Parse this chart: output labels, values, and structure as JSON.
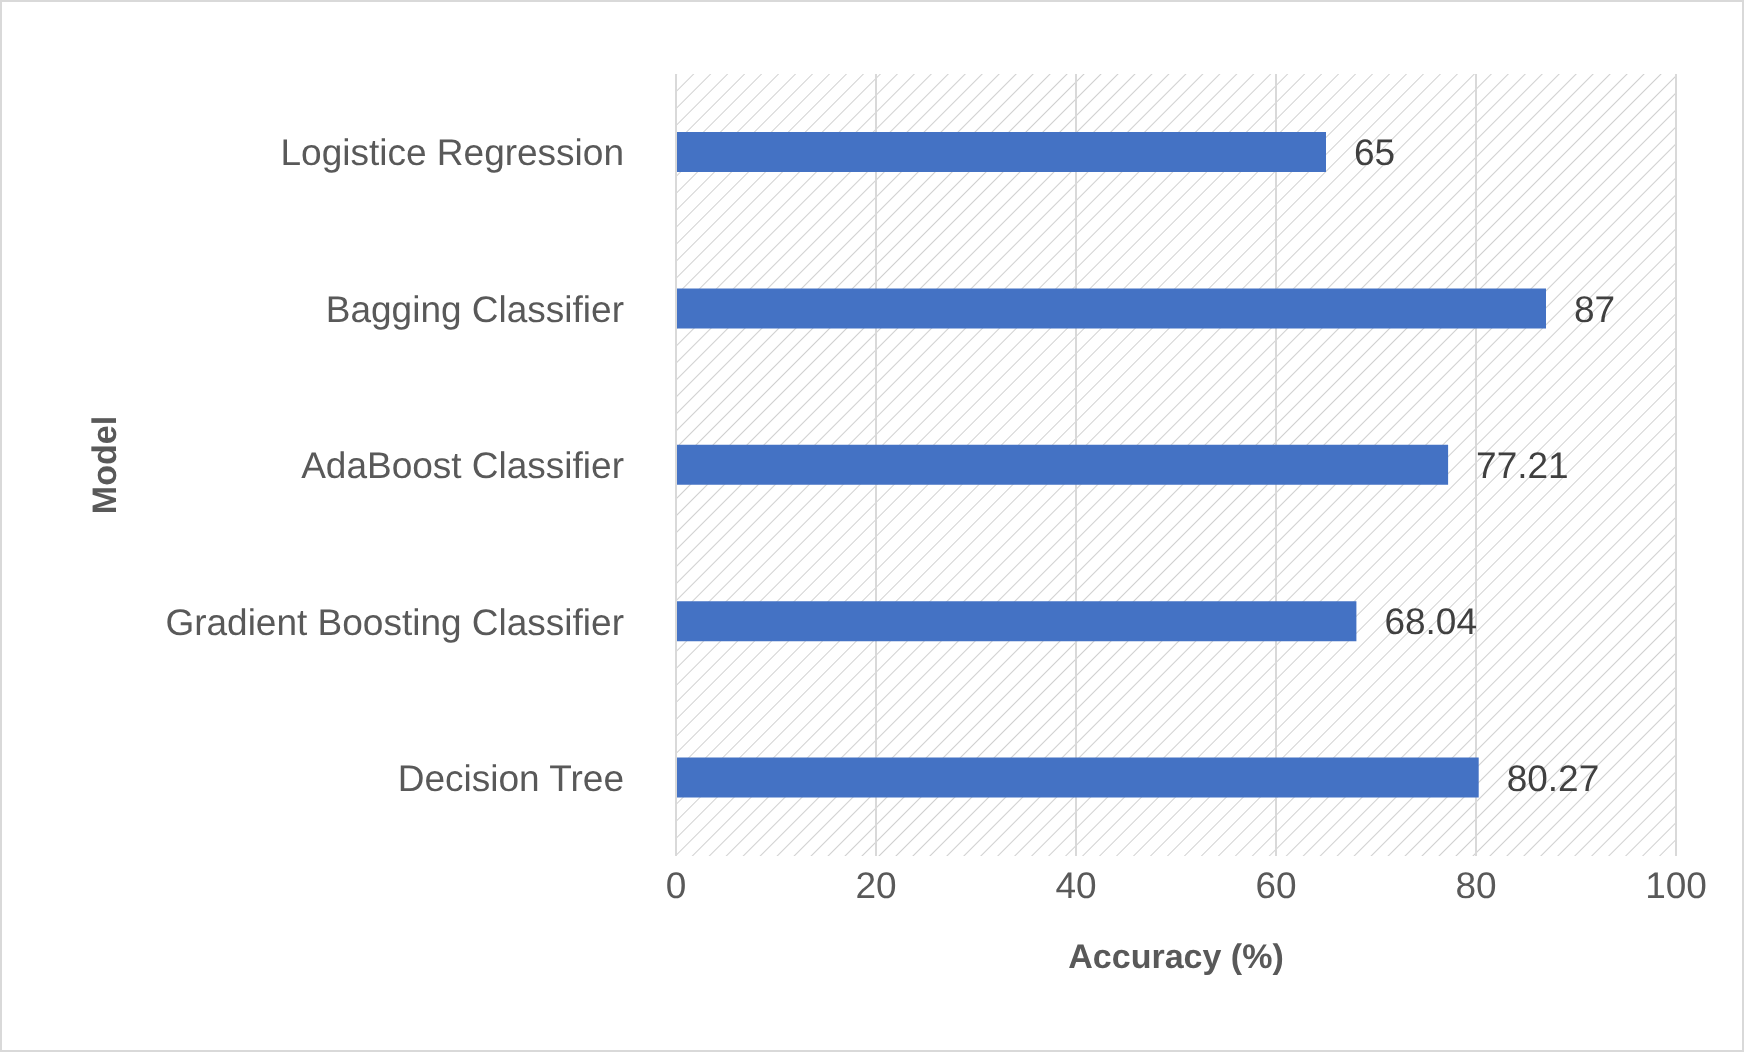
{
  "chart_data": {
    "type": "bar",
    "orientation": "horizontal",
    "xlabel": "Accuracy (%)",
    "ylabel": "Model",
    "categories": [
      "Logistice Regression",
      "Bagging Classifier",
      "AdaBoost Classifier",
      "Gradient Boosting Classifier",
      "Decision Tree"
    ],
    "values": [
      65,
      87,
      77.21,
      68.04,
      80.27
    ],
    "color": "#4472c4",
    "xlim": [
      0,
      100
    ],
    "xticks": [
      0,
      20,
      40,
      60,
      80,
      100
    ],
    "grid": "x",
    "data_labels": true,
    "legend": false
  }
}
